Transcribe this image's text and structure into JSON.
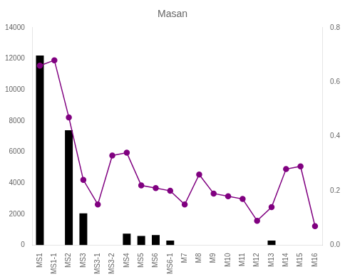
{
  "chart_data": {
    "type": "bar",
    "title": "Masan",
    "categories": [
      "MS1",
      "MS1-1",
      "MS2",
      "MS3",
      "MS3-1",
      "MS3-2",
      "MS4",
      "MS5",
      "MS6",
      "MS6-1",
      "M7",
      "M8",
      "M9",
      "M10",
      "M11",
      "M12",
      "M13",
      "M14",
      "M15",
      "M16"
    ],
    "series": [
      {
        "type": "bar",
        "color": "#000000",
        "values": [
          12200,
          0,
          7400,
          2050,
          0,
          0,
          750,
          600,
          650,
          300,
          0,
          0,
          0,
          0,
          0,
          0,
          300,
          0,
          0,
          0
        ]
      },
      {
        "type": "line",
        "axis": "y2",
        "color": "#800080",
        "marker": "circle",
        "line_style": "solid",
        "values": [
          0.66,
          0.68,
          0.47,
          0.24,
          0.15,
          0.33,
          0.34,
          0.22,
          0.21,
          0.2,
          0.15,
          0.26,
          0.19,
          0.18,
          0.17,
          0.09,
          0.14,
          0.28,
          0.29,
          0.07
        ]
      }
    ],
    "ylim": [
      0,
      14000
    ],
    "yticks": [
      0,
      2000,
      4000,
      6000,
      8000,
      10000,
      12000,
      14000
    ],
    "y2lim": [
      0.0,
      0.8
    ],
    "y2ticks": [
      {
        "value": 0.0,
        "label": "0.0"
      },
      0.2,
      0.4,
      0.6,
      0.8
    ],
    "grid": false
  }
}
